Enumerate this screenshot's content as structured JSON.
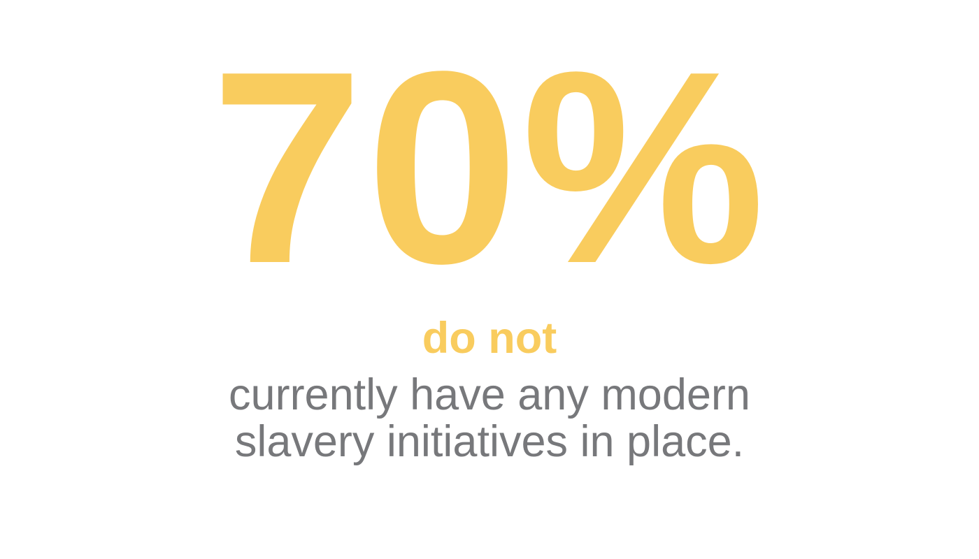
{
  "colors": {
    "accent_yellow": "#F9CC5E",
    "text_gray": "#77787B",
    "background": "#FFFFFF"
  },
  "stat": {
    "value": "70%",
    "emphasis": "do not",
    "description_line1": "currently have any modern",
    "description_line2": "slavery initiatives in place."
  },
  "chart_data": {
    "type": "table",
    "title": "70% do not currently have any modern slavery initiatives in place.",
    "metric": "Share that do not currently have any modern slavery initiatives in place",
    "value": 70,
    "unit": "%"
  }
}
